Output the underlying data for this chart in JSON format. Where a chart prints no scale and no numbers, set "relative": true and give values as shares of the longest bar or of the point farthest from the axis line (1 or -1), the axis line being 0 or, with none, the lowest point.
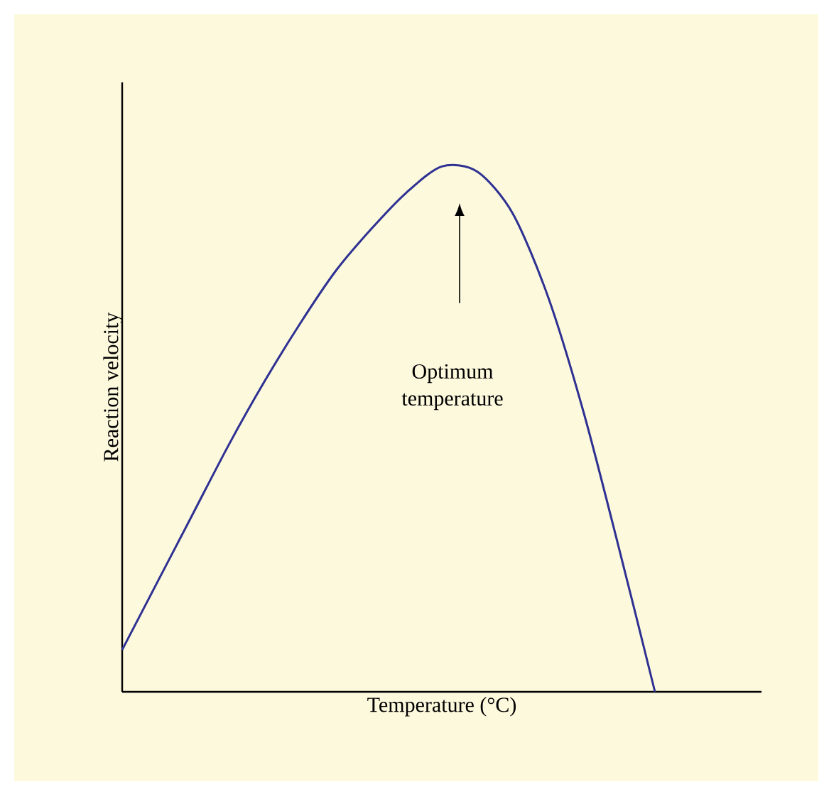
{
  "chart_data": {
    "type": "line",
    "relative": true,
    "xlabel": "Temperature (°C)",
    "ylabel": "Reaction velocity",
    "categories": [
      null,
      null,
      null,
      null,
      null,
      null,
      null,
      null,
      null,
      null,
      null,
      null,
      null,
      null,
      null,
      null,
      null,
      null,
      null
    ],
    "series": [
      {
        "color": "#2e3192",
        "values": [
          0.08,
          0.21,
          0.34,
          0.47,
          0.59,
          0.7,
          0.8,
          0.88,
          0.95,
          1.0,
          0.99,
          0.91,
          0.75,
          0.53,
          0.27,
          0,
          null,
          null,
          null
        ]
      }
    ],
    "annotations": [
      "Optimum temperature"
    ]
  }
}
